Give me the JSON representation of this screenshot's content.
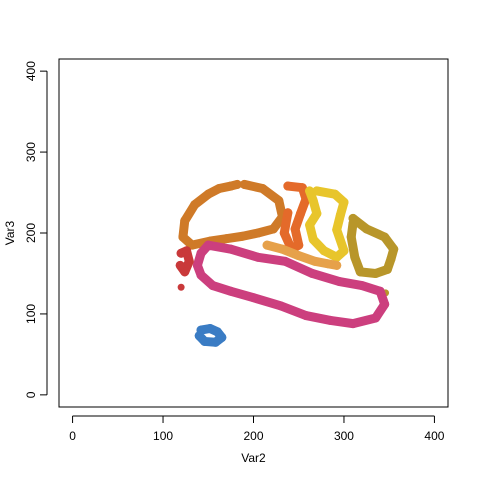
{
  "chart_data": {
    "type": "scatter",
    "title": "",
    "xlabel": "Var2",
    "ylabel": "Var3",
    "xlim": [
      -15,
      415
    ],
    "ylim": [
      -15,
      415
    ],
    "x_ticks": [
      0,
      100,
      200,
      300,
      400
    ],
    "y_ticks": [
      0,
      100,
      200,
      300,
      400
    ],
    "x_tick_labels": [
      "0",
      "100",
      "200",
      "300",
      "400"
    ],
    "y_tick_labels": [
      "0",
      "100",
      "200",
      "300",
      "400"
    ],
    "grid": false,
    "legend": "none",
    "regions": [
      {
        "color": "#cf7a28",
        "x": [
          190,
          210,
          228,
          232,
          222,
          205,
          188,
          170,
          152,
          132,
          122,
          124,
          135,
          150,
          162,
          175,
          182
        ],
        "y": [
          260,
          255,
          240,
          220,
          205,
          200,
          196,
          193,
          190,
          185,
          195,
          215,
          235,
          248,
          255,
          258,
          260
        ]
      },
      {
        "color": "#e46a2a",
        "x": [
          238,
          254,
          258,
          252,
          246,
          250,
          242,
          234,
          238
        ],
        "y": [
          258,
          256,
          242,
          224,
          205,
          185,
          180,
          200,
          225
        ]
      },
      {
        "color": "#e8c52b",
        "x": [
          270,
          290,
          300,
          296,
          292,
          300,
          292,
          278,
          266,
          262,
          270,
          266,
          262
        ],
        "y": [
          252,
          248,
          238,
          222,
          204,
          178,
          170,
          178,
          192,
          210,
          224,
          240,
          252
        ]
      },
      {
        "color": "#b8962a",
        "x": [
          310,
          325,
          345,
          355,
          352,
          348,
          335,
          318,
          312,
          308,
          310
        ],
        "y": [
          218,
          205,
          195,
          180,
          168,
          155,
          150,
          152,
          170,
          195,
          212
        ]
      },
      {
        "color": "#b8962a",
        "x": [
          346
        ],
        "y": [
          126
        ]
      },
      {
        "color": "#e6a14a",
        "x": [
          215,
          232,
          250,
          268,
          282,
          292
        ],
        "y": [
          185,
          180,
          172,
          165,
          162,
          160
        ]
      },
      {
        "color": "#cc3f7e",
        "x": [
          150,
          175,
          205,
          235,
          265,
          295,
          320,
          340,
          345,
          335,
          310,
          285,
          258,
          230,
          200,
          175,
          155,
          142,
          138,
          142,
          150
        ],
        "y": [
          185,
          180,
          170,
          165,
          150,
          140,
          135,
          128,
          112,
          95,
          88,
          92,
          98,
          110,
          120,
          128,
          135,
          148,
          160,
          175,
          185
        ]
      },
      {
        "color": "#c9393a",
        "x": [
          120,
          126,
          129,
          124,
          119
        ],
        "y": [
          175,
          178,
          165,
          152,
          160
        ]
      },
      {
        "color": "#c9393a",
        "x": [
          120
        ],
        "y": [
          133
        ]
      },
      {
        "color": "#3a7cc4",
        "x": [
          142,
          152,
          160,
          165,
          158,
          146,
          140
        ],
        "y": [
          80,
          82,
          78,
          71,
          65,
          66,
          73
        ]
      }
    ]
  }
}
